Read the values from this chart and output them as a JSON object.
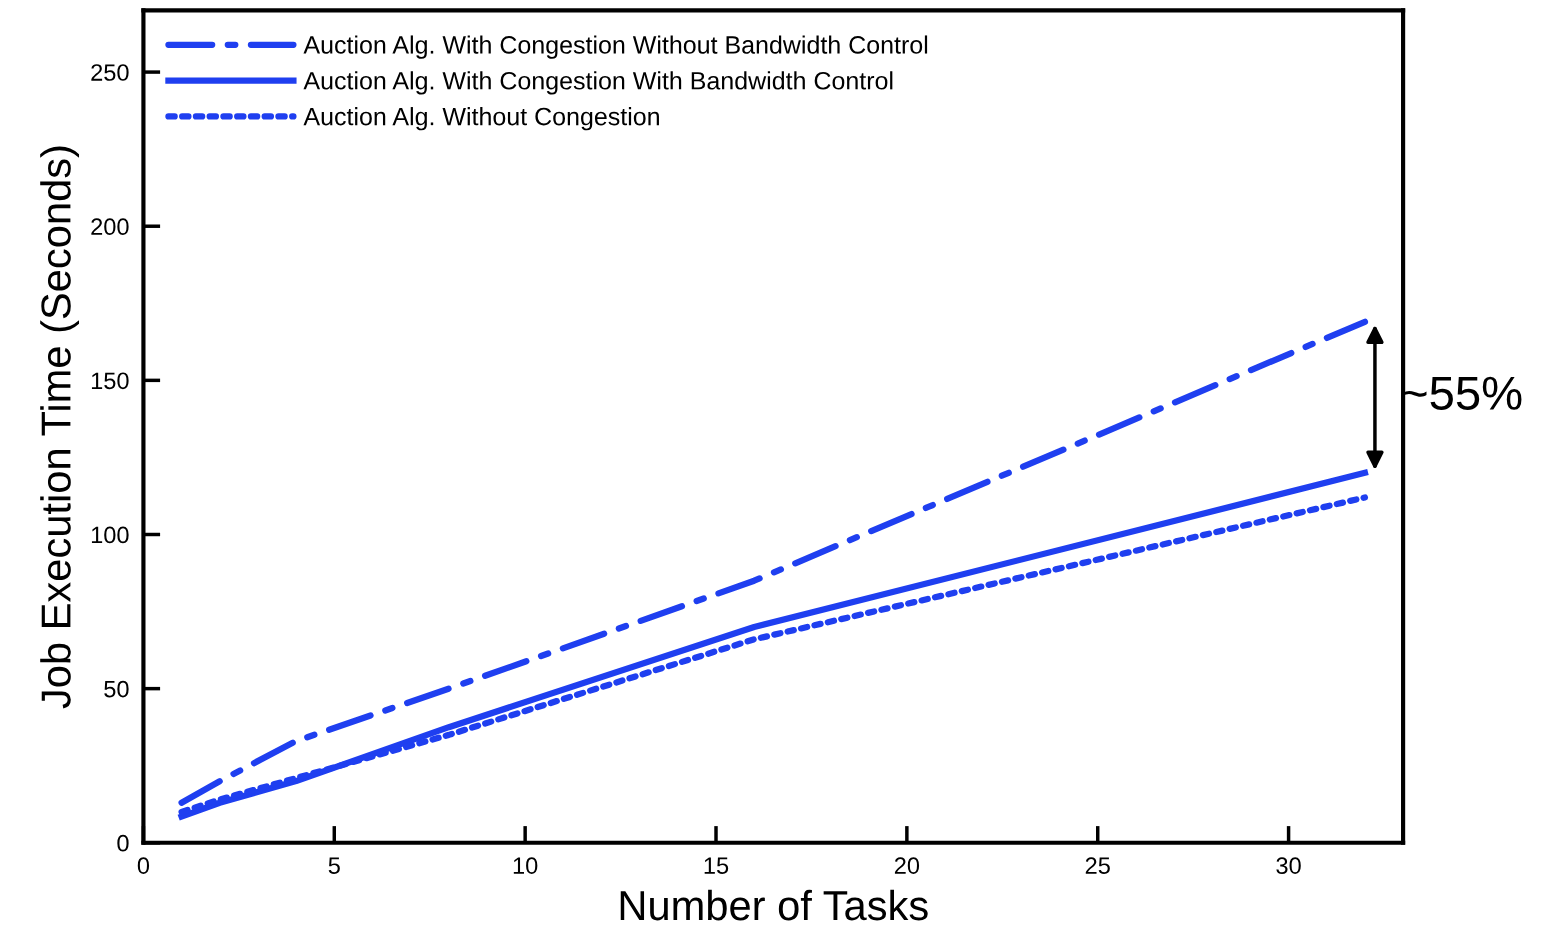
{
  "chart_data": {
    "type": "line",
    "xlabel": "Number of Tasks",
    "ylabel": "Job Execution Time (Seconds)",
    "series": [
      {
        "name": "Auction Alg. With Congestion Without Bandwidth Control",
        "color": "#1f3ff0",
        "line_style": "dashdot",
        "x": [
          1,
          2,
          4,
          8,
          16,
          32
        ],
        "values": [
          13,
          20,
          33,
          50,
          85,
          169
        ]
      },
      {
        "name": "Auction Alg. With Congestion With Bandwidth Control",
        "color": "#1f3ff0",
        "line_style": "solid",
        "x": [
          1,
          2,
          4,
          8,
          16,
          32
        ],
        "values": [
          8.5,
          13,
          20,
          37.5,
          70,
          120
        ]
      },
      {
        "name": "Auction Alg. Without Congestion",
        "color": "#1f3ff0",
        "line_style": "dotted",
        "x": [
          1,
          2,
          4,
          8,
          16,
          32
        ],
        "values": [
          10,
          14,
          21,
          35,
          66,
          112
        ]
      }
    ],
    "xlim": [
      0,
      33
    ],
    "ylim": [
      0,
      270
    ],
    "xticks": [
      0,
      5,
      10,
      15,
      20,
      25,
      30
    ],
    "yticks": [
      0,
      50,
      100,
      150,
      200,
      250
    ],
    "annotations": [
      "~55%"
    ],
    "legend": "top left",
    "grid": false,
    "marker": "none"
  }
}
